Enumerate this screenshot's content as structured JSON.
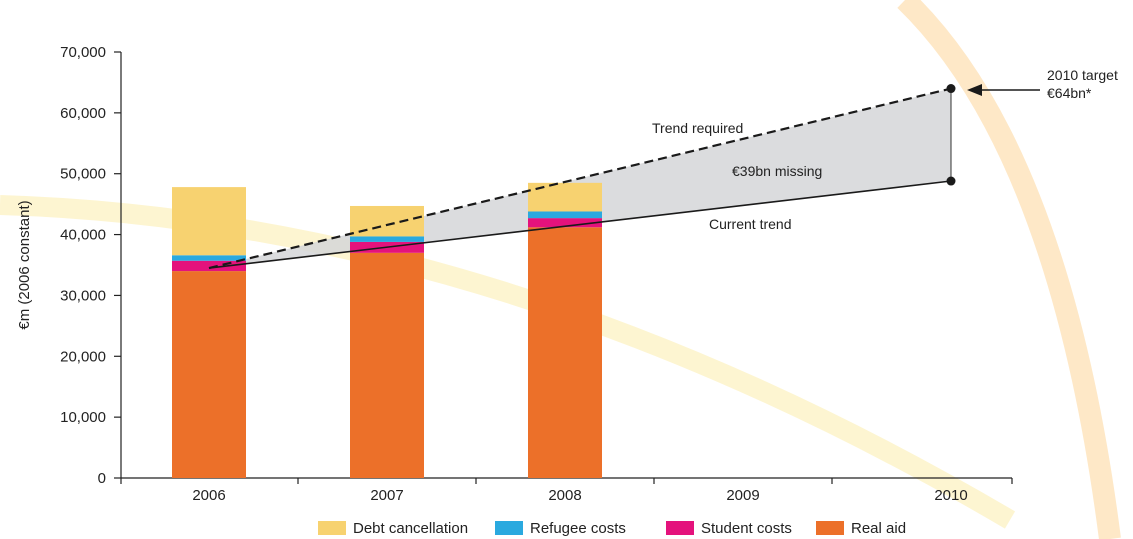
{
  "chart_data": {
    "type": "bar",
    "stacked": true,
    "categories": [
      "2006",
      "2007",
      "2008",
      "2009",
      "2010"
    ],
    "ylabel": "€m (2006 constant)",
    "xlabel": "",
    "ylim": [
      0,
      70000
    ],
    "yticks": [
      0,
      10000,
      20000,
      30000,
      40000,
      50000,
      60000,
      70000
    ],
    "ytick_labels": [
      "0",
      "10,000",
      "20,000",
      "30,000",
      "40,000",
      "50,000",
      "60,000",
      "70,000"
    ],
    "grid": false,
    "legend_position": "bottom",
    "series": [
      {
        "name": "Real aid",
        "color": "#ec7029",
        "values": [
          34000,
          37000,
          41200,
          null,
          null
        ]
      },
      {
        "name": "Student costs",
        "color": "#e4127c",
        "values": [
          1700,
          1800,
          1500,
          null,
          null
        ]
      },
      {
        "name": "Refugee costs",
        "color": "#2aa9df",
        "values": [
          900,
          900,
          1100,
          null,
          null
        ]
      },
      {
        "name": "Debt cancellation",
        "color": "#f7d270",
        "values": [
          11200,
          5000,
          4700,
          null,
          null
        ]
      }
    ],
    "stack_order": [
      "Real aid",
      "Student costs",
      "Refugee costs",
      "Debt cancellation"
    ],
    "legend_order": [
      "Debt cancellation",
      "Refugee costs",
      "Student costs",
      "Real aid"
    ],
    "trend_lines": [
      {
        "label": "Trend required",
        "style": "dashed",
        "points": [
          [
            "2006",
            34500
          ],
          [
            "2010",
            64000
          ]
        ]
      },
      {
        "label": "Current trend",
        "style": "solid",
        "points": [
          [
            "2006",
            34500
          ],
          [
            "2010",
            48800
          ]
        ]
      }
    ],
    "gap_label": "€39bn missing",
    "target_label_line1": "2010 target",
    "target_label_line2": "€64bn*"
  }
}
